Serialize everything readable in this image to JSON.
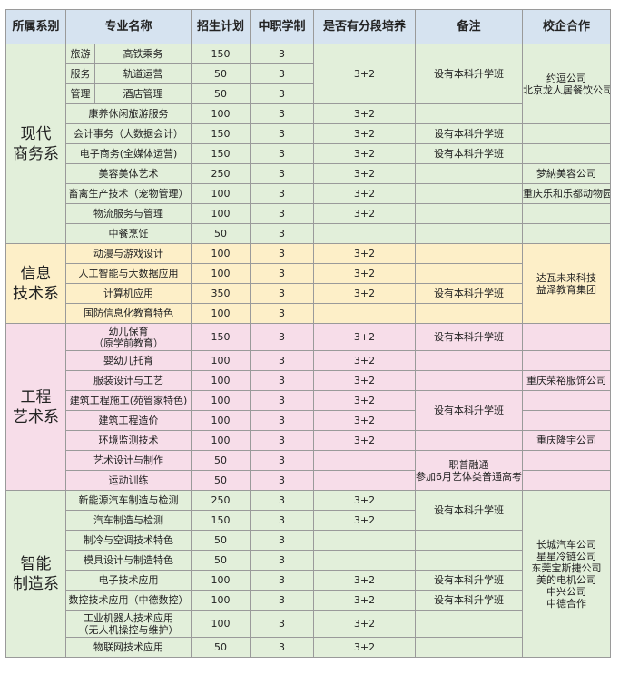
{
  "header": [
    "所属系别",
    "专业名称",
    "招生计划",
    "中职学制",
    "是否有分段培养",
    "备注",
    "校企合作"
  ],
  "departments": [
    {
      "name_lines": [
        "现代",
        "商务系"
      ],
      "group": [
        "旅游",
        "服务",
        "管理"
      ],
      "majors": [
        {
          "name": "高铁乘务",
          "plan": 150,
          "years": 3,
          "segment": "3+2"
        },
        {
          "name": "轨道运营",
          "plan": 50,
          "years": 3
        },
        {
          "name": "酒店管理",
          "plan": 50,
          "years": 3
        },
        {
          "name": "康养休闲旅游服务",
          "plan": 100,
          "years": 3,
          "segment": "3+2"
        },
        {
          "name": "会计事务（大数据会计）",
          "plan": 150,
          "years": 3,
          "segment": "3+2"
        },
        {
          "name": "电子商务(全媒体运营)",
          "plan": 150,
          "years": 3,
          "segment": "3+2"
        },
        {
          "name": "美容美体艺术",
          "plan": 250,
          "years": 3,
          "segment": "3+2"
        },
        {
          "name": "畜禽生产技术（宠物管理）",
          "plan": 100,
          "years": 3,
          "segment": "3+2"
        },
        {
          "name": "物流服务与管理",
          "plan": 100,
          "years": 3,
          "segment": "3+2"
        },
        {
          "name": "中餐烹饪",
          "plan": 50,
          "years": 3
        }
      ],
      "notes": [
        [
          "设有本科升学班"
        ],
        [
          "设有本科升学班"
        ],
        [
          "设有本科升学班"
        ]
      ],
      "partners": [
        [
          "约逗公司",
          "北京龙人居餐饮公司"
        ],
        [
          "梦納美容公司"
        ],
        [
          "重庆乐和乐都动物园"
        ]
      ]
    },
    {
      "name_lines": [
        "信息",
        "技术系"
      ],
      "majors": [
        {
          "name": "动漫与游戏设计",
          "plan": 100,
          "years": 3,
          "segment": "3+2"
        },
        {
          "name": "人工智能与大数据应用",
          "plan": 100,
          "years": 3,
          "segment": "3+2"
        },
        {
          "name": "计算机应用",
          "plan": 350,
          "years": 3,
          "segment": "3+2"
        },
        {
          "name": "国防信息化教育特色",
          "plan": 100,
          "years": 3
        }
      ],
      "notes": [
        [
          "设有本科升学班"
        ]
      ],
      "partners": [
        [
          "达瓦未来科技",
          "益泽教育集团"
        ]
      ]
    },
    {
      "name_lines": [
        "工程",
        "艺术系"
      ],
      "majors": [
        {
          "name_lines": [
            "幼儿保育",
            "（原学前教育）"
          ],
          "plan": 150,
          "years": 3,
          "segment": "3+2"
        },
        {
          "name": "婴幼儿托育",
          "plan": 100,
          "years": 3,
          "segment": "3+2"
        },
        {
          "name": "服装设计与工艺",
          "plan": 100,
          "years": 3,
          "segment": "3+2"
        },
        {
          "name": "建筑工程施工(苑管家特色)",
          "plan": 100,
          "years": 3,
          "segment": "3+2"
        },
        {
          "name": "建筑工程造价",
          "plan": 100,
          "years": 3,
          "segment": "3+2"
        },
        {
          "name": "环境监测技术",
          "plan": 100,
          "years": 3,
          "segment": "3+2"
        },
        {
          "name": "艺术设计与制作",
          "plan": 50,
          "years": 3
        },
        {
          "name": "运动训练",
          "plan": 50,
          "years": 3
        }
      ],
      "notes": [
        [
          "设有本科升学班"
        ],
        [
          "设有本科升学班"
        ],
        [
          "职普融通",
          "参加6月艺体类普通高考"
        ]
      ],
      "partners": [
        [
          "重庆荣裕服饰公司"
        ],
        [
          "重庆隆宇公司"
        ]
      ]
    },
    {
      "name_lines": [
        "智能",
        "制造系"
      ],
      "majors": [
        {
          "name": "新能源汽车制造与检测",
          "plan": 250,
          "years": 3,
          "segment": "3+2"
        },
        {
          "name": "汽车制造与检测",
          "plan": 150,
          "years": 3,
          "segment": "3+2"
        },
        {
          "name": "制冷与空调技术特色",
          "plan": 50,
          "years": 3
        },
        {
          "name": "模具设计与制造特色",
          "plan": 50,
          "years": 3
        },
        {
          "name": "电子技术应用",
          "plan": 100,
          "years": 3,
          "segment": "3+2"
        },
        {
          "name": "数控技术应用（中德数控）",
          "plan": 100,
          "years": 3,
          "segment": "3+2"
        },
        {
          "name_lines": [
            "工业机器人技术应用",
            "（无人机操控与维护）"
          ],
          "plan": 100,
          "years": 3,
          "segment": "3+2"
        },
        {
          "name": "物联网技术应用",
          "plan": 50,
          "years": 3,
          "segment": "3+2"
        }
      ],
      "notes": [
        [
          "设有本科升学班"
        ],
        [
          "设有本科升学班"
        ],
        [
          "设有本科升学班"
        ]
      ],
      "partners": [
        [
          "长城汽车公司",
          "星星冷链公司",
          "东莞宝斯捷公司",
          "美的电机公司",
          "中兴公司",
          "中德合作"
        ]
      ]
    }
  ]
}
